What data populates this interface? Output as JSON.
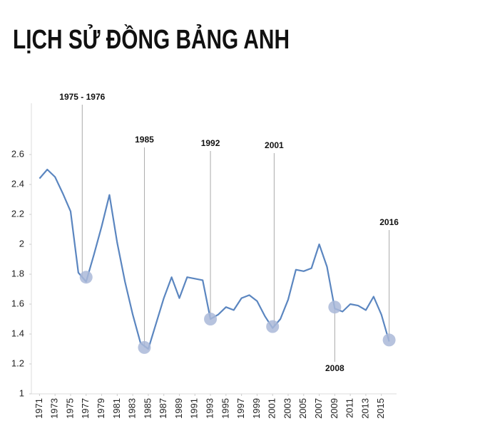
{
  "chart_data": {
    "type": "line",
    "title": "LỊCH SỬ ĐỒNG BẢNG ANH",
    "x": [
      1971,
      1972,
      1973,
      1974,
      1975,
      1976,
      1977,
      1978,
      1979,
      1980,
      1981,
      1982,
      1983,
      1984,
      1985,
      1986,
      1987,
      1988,
      1989,
      1990,
      1991,
      1992,
      1993,
      1994,
      1995,
      1996,
      1997,
      1998,
      1999,
      2000,
      2001,
      2002,
      2003,
      2004,
      2005,
      2006,
      2007,
      2008,
      2009,
      2010,
      2011,
      2012,
      2013,
      2014,
      2015,
      2016
    ],
    "series": [
      {
        "color": "#5b86c0",
        "values": [
          2.44,
          2.5,
          2.45,
          2.34,
          2.22,
          1.81,
          1.75,
          1.93,
          2.12,
          2.33,
          2.01,
          1.75,
          1.53,
          1.34,
          1.3,
          1.47,
          1.64,
          1.78,
          1.64,
          1.78,
          1.77,
          1.76,
          1.5,
          1.53,
          1.58,
          1.56,
          1.64,
          1.66,
          1.62,
          1.52,
          1.44,
          1.5,
          1.63,
          1.83,
          1.82,
          1.84,
          2.0,
          1.85,
          1.57,
          1.55,
          1.6,
          1.59,
          1.56,
          1.65,
          1.53,
          1.35
        ]
      }
    ],
    "xlim": [
      1970,
      2017
    ],
    "xticks": [
      1971,
      1973,
      1975,
      1977,
      1979,
      1981,
      1983,
      1985,
      1987,
      1989,
      1991,
      1993,
      1995,
      1997,
      1999,
      2001,
      2003,
      2005,
      2007,
      2009,
      2011,
      2013,
      2015
    ],
    "ylim": [
      1,
      2.6
    ],
    "yticks": [
      1,
      1.2,
      1.4,
      1.6,
      1.8,
      2,
      2.2,
      2.4,
      2.6
    ],
    "annotations": [
      {
        "label": "1975 - 1976",
        "x": 1976.5,
        "point_x": 1977,
        "value": 1.78
      },
      {
        "label": "1985",
        "x": 1984.5,
        "point_x": 1984.5,
        "value": 1.31
      },
      {
        "label": "1992",
        "x": 1993,
        "point_x": 1993,
        "value": 1.5
      },
      {
        "label": "2001",
        "x": 2001.2,
        "point_x": 2001,
        "value": 1.45
      },
      {
        "label": "2008",
        "x": 2009,
        "point_x": 2009,
        "value": 1.58
      },
      {
        "label": "2016",
        "x": 2016,
        "point_x": 2016,
        "value": 1.36
      }
    ],
    "annotation_color": "#aab8d8"
  }
}
